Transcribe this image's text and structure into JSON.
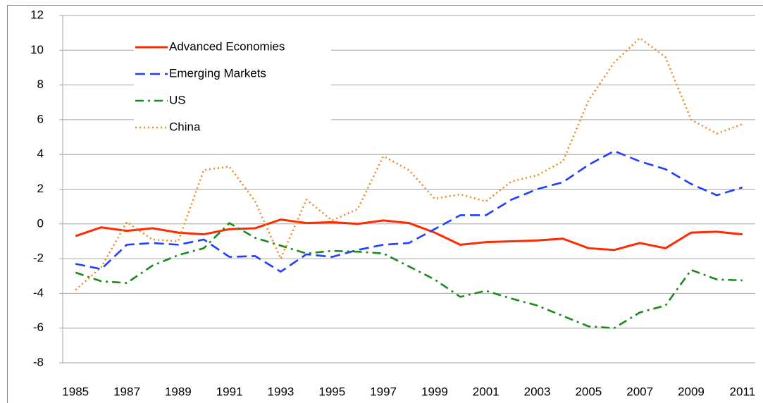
{
  "chart_data": {
    "type": "line",
    "x": [
      1985,
      1986,
      1987,
      1988,
      1989,
      1990,
      1991,
      1992,
      1993,
      1994,
      1995,
      1996,
      1997,
      1998,
      1999,
      2000,
      2001,
      2002,
      2003,
      2004,
      2005,
      2006,
      2007,
      2008,
      2009,
      2010,
      2011
    ],
    "series": [
      {
        "name": "Advanced Economies",
        "color": "#ff2a00",
        "dash": "solid",
        "values": [
          -0.7,
          -0.2,
          -0.4,
          -0.25,
          -0.5,
          -0.6,
          -0.3,
          -0.25,
          0.25,
          0.05,
          0.1,
          0.0,
          0.2,
          0.05,
          -0.5,
          -1.2,
          -1.05,
          -1.0,
          -0.95,
          -0.85,
          -1.4,
          -1.5,
          -1.1,
          -1.4,
          -0.5,
          -0.45,
          -0.6
        ]
      },
      {
        "name": "Emerging Markets",
        "color": "#1f3fff",
        "dash": "dashed",
        "values": [
          -2.3,
          -2.6,
          -1.2,
          -1.1,
          -1.2,
          -0.9,
          -1.9,
          -1.85,
          -2.75,
          -1.75,
          -1.9,
          -1.5,
          -1.2,
          -1.1,
          -0.3,
          0.5,
          0.5,
          1.4,
          2.0,
          2.4,
          3.4,
          4.2,
          3.6,
          3.15,
          2.3,
          1.65,
          2.1
        ]
      },
      {
        "name": "US",
        "color": "#1a8a1a",
        "dash": "dashdot",
        "values": [
          -2.8,
          -3.3,
          -3.4,
          -2.4,
          -1.8,
          -1.4,
          0.05,
          -0.8,
          -1.25,
          -1.7,
          -1.55,
          -1.6,
          -1.7,
          -2.45,
          -3.2,
          -4.2,
          -3.85,
          -4.3,
          -4.7,
          -5.3,
          -5.9,
          -6.0,
          -5.1,
          -4.7,
          -2.65,
          -3.2,
          -3.25
        ]
      },
      {
        "name": "China",
        "color": "#f08a1c",
        "dash": "dotted",
        "values": [
          -3.8,
          -2.5,
          0.1,
          -0.9,
          -1.0,
          3.1,
          3.3,
          1.3,
          -2.0,
          1.4,
          0.2,
          0.85,
          3.9,
          3.1,
          1.45,
          1.7,
          1.3,
          2.45,
          2.8,
          3.6,
          7.1,
          9.3,
          10.7,
          9.6,
          6.0,
          5.2,
          5.75
        ]
      }
    ],
    "xlim": [
      1984.5,
      2011.5
    ],
    "xticks": [
      1985,
      1987,
      1989,
      1991,
      1993,
      1995,
      1997,
      1999,
      2001,
      2003,
      2005,
      2007,
      2009,
      2011
    ],
    "ylim": [
      -8,
      12
    ],
    "yticks": [
      -8,
      -6,
      -4,
      -2,
      0,
      2,
      4,
      6,
      8,
      10,
      12
    ],
    "grid": true,
    "legend": "top-left"
  }
}
